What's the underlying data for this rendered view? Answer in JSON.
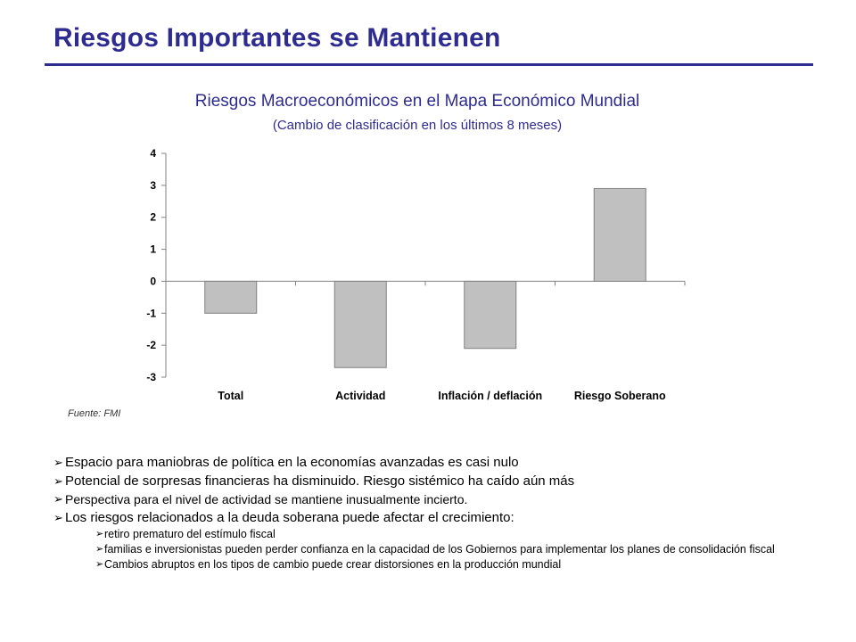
{
  "slide": {
    "title": "Riesgos Importantes se Mantienen",
    "chart_title": "Riesgos Macroeconómicos en el Mapa Económico Mundial",
    "chart_subtitle": "(Cambio de clasificación en los últimos 8 meses)",
    "source": "Fuente: FMI",
    "bullet_icon": "arrow-bullet-icon",
    "colors": {
      "title": "#2e2c8f",
      "bar_fill": "#c0c0c0",
      "bar_stroke": "#808080"
    },
    "bullets": [
      {
        "text": "Espacio para maniobras de política en la economías avanzadas es casi nulo"
      },
      {
        "text": "Potencial de sorpresas financieras ha disminuido. Riesgo sistémico ha caído aún más"
      },
      {
        "text": "Perspectiva para el nivel de actividad se mantiene inusualmente incierto."
      },
      {
        "text": "Los riesgos relacionados a la deuda soberana puede afectar el crecimiento:"
      }
    ],
    "sub_bullets": [
      {
        "text": "retiro prematuro del estímulo fiscal"
      },
      {
        "text": "familias e inversionistas pueden perder confianza en la capacidad de los Gobiernos para implementar los planes de consolidación fiscal"
      },
      {
        "text": "Cambios abruptos en los tipos de cambio puede crear distorsiones en la producción mundial"
      }
    ]
  },
  "chart_data": {
    "type": "bar",
    "title": "Riesgos Macroeconómicos en el Mapa Económico Mundial",
    "subtitle": "(Cambio de clasificación en los últimos 8 meses)",
    "categories": [
      "Total",
      "Actividad",
      "Inflación / deflación",
      "Riesgo Soberano"
    ],
    "values": [
      -1,
      -2.7,
      -2.1,
      2.9
    ],
    "ylim": [
      -3,
      4
    ],
    "yticks": [
      "4",
      "3",
      "2",
      "1",
      "0",
      "-1",
      "-2",
      "-3"
    ],
    "grid": false,
    "legend": "none"
  }
}
